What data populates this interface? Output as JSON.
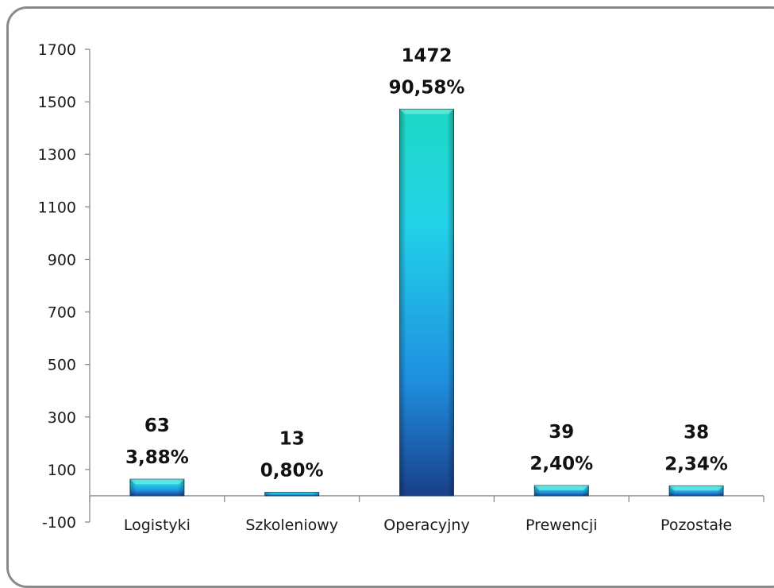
{
  "chart_data": {
    "type": "bar",
    "categories": [
      "Logistyki",
      "Szkoleniowy",
      "Operacyjny",
      "Prewencji",
      "Pozostałe"
    ],
    "values": [
      63,
      13,
      1472,
      39,
      38
    ],
    "percent_labels": [
      "3,88%",
      "0,80%",
      "90,58%",
      "2,40%",
      "2,34%"
    ],
    "value_labels": [
      "63",
      "13",
      "1472",
      "39",
      "38"
    ],
    "yticks": [
      1700,
      1500,
      1300,
      1100,
      900,
      700,
      500,
      300,
      100,
      -100
    ],
    "ylim": [
      -100,
      1700
    ],
    "title": "",
    "xlabel": "",
    "ylabel": "",
    "grid": false,
    "colors": {
      "bar_top": "#1ed8c4",
      "bar_mid": "#1fa8e0",
      "bar_bottom": "#1a3f8a",
      "axis": "#8c8c8c"
    }
  }
}
